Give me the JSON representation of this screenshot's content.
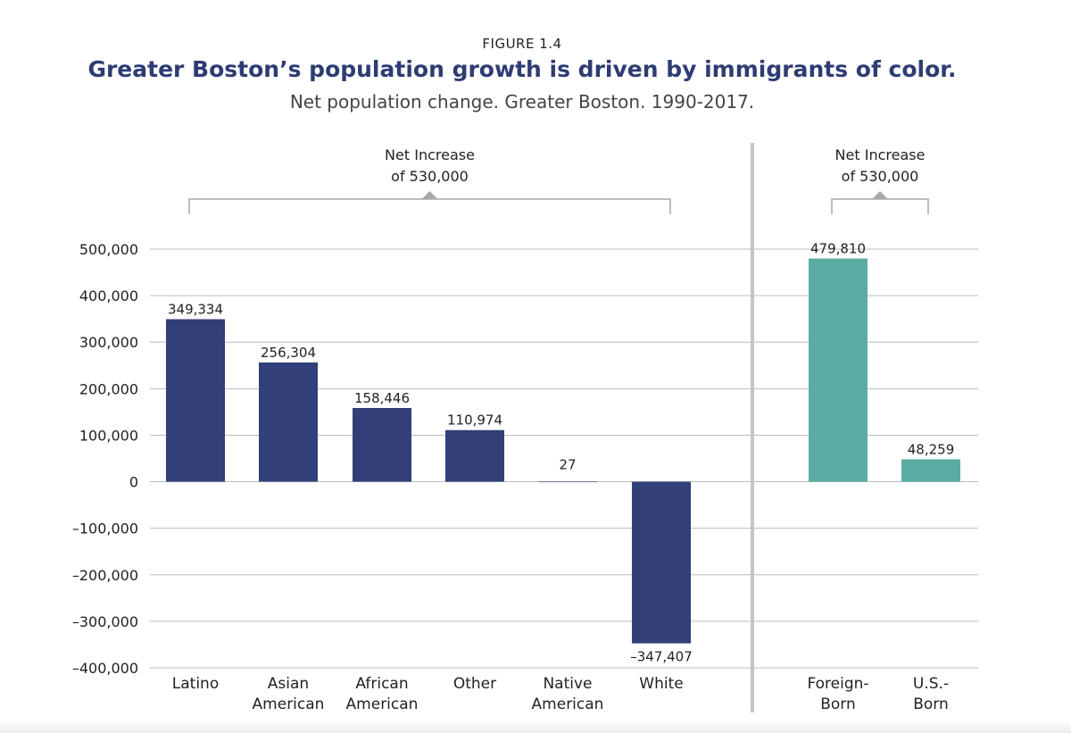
{
  "figure_label": "FIGURE 1.4",
  "title": "Greater Boston’s population growth is driven by immigrants of color.",
  "subtitle": "Net population change. Greater Boston. 1990-2017.",
  "colors": {
    "race": "#323f78",
    "nativity": "#5aaca3",
    "title": "#2e3c73",
    "grid": "#bbbbbb",
    "divider": "#c4c4c4"
  },
  "chart_data": {
    "type": "bar",
    "title": "Greater Boston’s population growth is driven by immigrants of color.",
    "subtitle": "Net population change. Greater Boston. 1990-2017.",
    "ylim": [
      -400000,
      500000
    ],
    "grid": true,
    "y_ticks": [
      {
        "value": 500000,
        "label": "500,000"
      },
      {
        "value": 400000,
        "label": "400,000"
      },
      {
        "value": 300000,
        "label": "300,000"
      },
      {
        "value": 200000,
        "label": "200,000"
      },
      {
        "value": 100000,
        "label": "100,000"
      },
      {
        "value": 0,
        "label": "0"
      },
      {
        "value": -100000,
        "label": "–100,000"
      },
      {
        "value": -200000,
        "label": "–200,000"
      },
      {
        "value": -300000,
        "label": "–300,000"
      },
      {
        "value": -400000,
        "label": "–400,000"
      }
    ],
    "groups": [
      {
        "annotation": [
          "Net Increase",
          "of 530,000"
        ],
        "color": "#323f78",
        "bars": [
          {
            "category": [
              "Latino"
            ],
            "value": 349334,
            "label": "349,334"
          },
          {
            "category": [
              "Asian",
              "American"
            ],
            "value": 256304,
            "label": "256,304"
          },
          {
            "category": [
              "African",
              "American"
            ],
            "value": 158446,
            "label": "158,446"
          },
          {
            "category": [
              "Other"
            ],
            "value": 110974,
            "label": "110,974"
          },
          {
            "category": [
              "Native",
              "American"
            ],
            "value": 27,
            "label": "27"
          },
          {
            "category": [
              "White"
            ],
            "value": -347407,
            "label": "–347,407"
          }
        ]
      },
      {
        "annotation": [
          "Net Increase",
          "of 530,000"
        ],
        "color": "#5aaca3",
        "bars": [
          {
            "category": [
              "Foreign-",
              "Born"
            ],
            "value": 479810,
            "label": "479,810"
          },
          {
            "category": [
              "U.S.-",
              "Born"
            ],
            "value": 48259,
            "label": "48,259"
          }
        ]
      }
    ]
  }
}
